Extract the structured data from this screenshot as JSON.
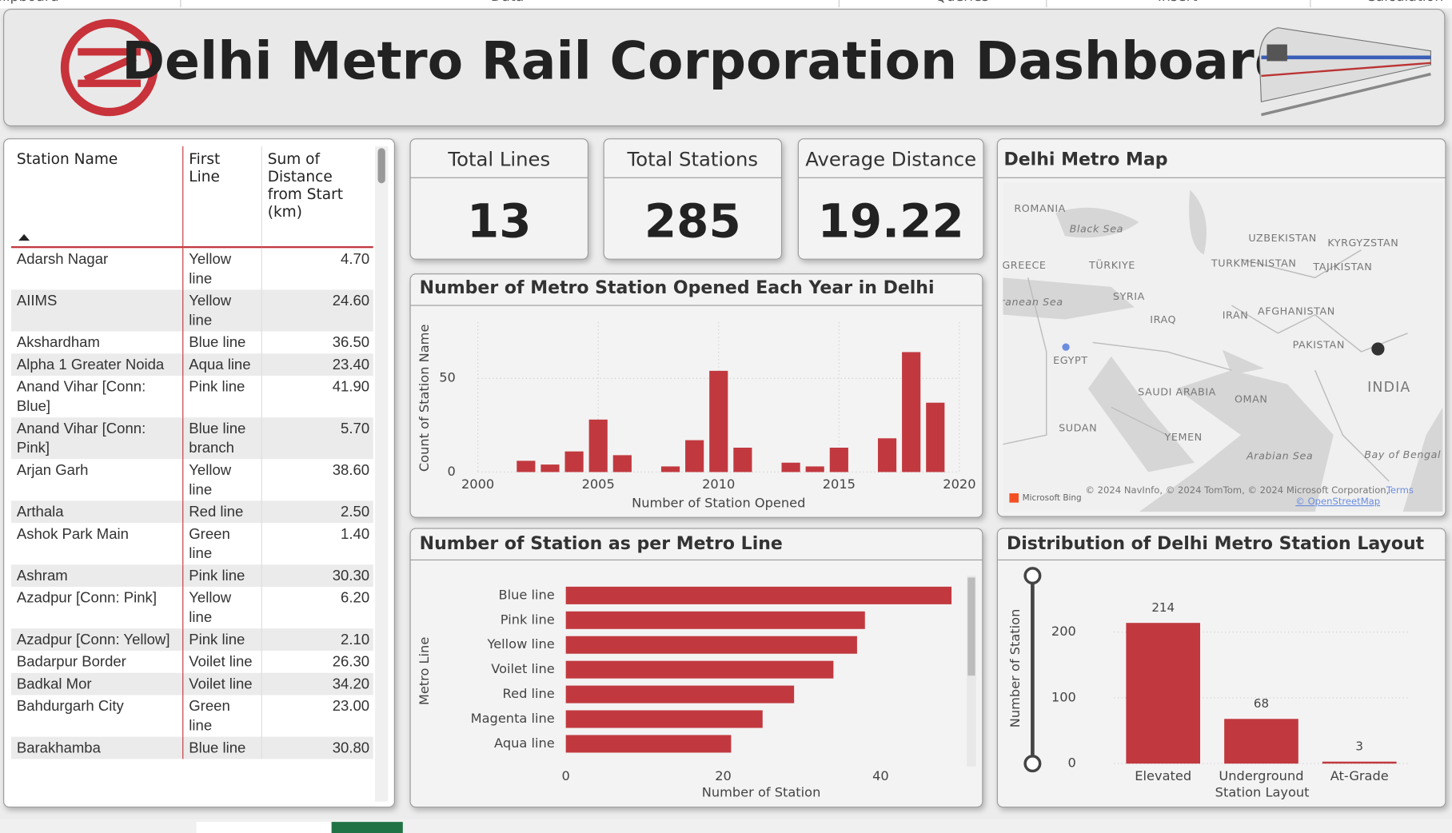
{
  "ribbon": [
    "Clipboard",
    "Data",
    "Queries",
    "Insert",
    "Calculation"
  ],
  "header": {
    "title": "Delhi Metro Rail Corporation Dashboard"
  },
  "table": {
    "columns": [
      "Station Name",
      "First Line",
      "Sum of Distance from Start (km)"
    ],
    "rows": [
      [
        "Adarsh Nagar",
        "Yellow line",
        "4.70"
      ],
      [
        "AIIMS",
        "Yellow line",
        "24.60"
      ],
      [
        "Akshardham",
        "Blue line",
        "36.50"
      ],
      [
        "Alpha 1 Greater Noida",
        "Aqua line",
        "23.40"
      ],
      [
        "Anand Vihar [Conn: Blue]",
        "Pink line",
        "41.90"
      ],
      [
        "Anand Vihar [Conn: Pink]",
        "Blue line branch",
        "5.70"
      ],
      [
        "Arjan Garh",
        "Yellow line",
        "38.60"
      ],
      [
        "Arthala",
        "Red line",
        "2.50"
      ],
      [
        "Ashok Park Main",
        "Green line",
        "1.40"
      ],
      [
        "Ashram",
        "Pink line",
        "30.30"
      ],
      [
        "Azadpur [Conn: Pink]",
        "Yellow line",
        "6.20"
      ],
      [
        "Azadpur [Conn: Yellow]",
        "Pink line",
        "2.10"
      ],
      [
        "Badarpur Border",
        "Voilet line",
        "26.30"
      ],
      [
        "Badkal Mor",
        "Voilet line",
        "34.20"
      ],
      [
        "Bahdurgarh City",
        "Green line",
        "23.00"
      ],
      [
        "Barakhamba",
        "Blue line",
        "30.80"
      ]
    ]
  },
  "cards": [
    {
      "label": "Total Lines",
      "value": 13
    },
    {
      "label": "Total Stations",
      "value": 285
    },
    {
      "label": "Average Distance",
      "value": 19.22
    }
  ],
  "map": {
    "title": "Delhi Metro Map",
    "labels": [
      "ROMANIA",
      "Black Sea",
      "UZBEKISTAN",
      "KYRGYZSTAN",
      "GREECE",
      "TÜRKIYE",
      "TURKMENISTAN",
      "TAJIKISTAN",
      "SYRIA",
      "Mediterranean Sea",
      "IRAQ",
      "IRAN",
      "AFGHANISTAN",
      "PAKISTAN",
      "EGYPT",
      "INDIA",
      "SAUDI ARABIA",
      "OMAN",
      "SUDAN",
      "YEMEN",
      "Arabian Sea",
      "Bay of Bengal"
    ],
    "attribution": "© 2024 NavInfo, © 2024 TomTom, © 2024 Microsoft Corporation,",
    "terms": "Terms",
    "osm": "© OpenStreetMap",
    "brand": "Microsoft Bing"
  },
  "chart_data": [
    {
      "type": "bar",
      "title": "Number of Metro Station Opened Each Year in Delhi",
      "x_label": "Number of Station Opened",
      "y_label": "Count of Station Name",
      "x": [
        2002,
        2003,
        2004,
        2005,
        2006,
        2008,
        2009,
        2010,
        2011,
        2013,
        2014,
        2015,
        2017,
        2018,
        2019
      ],
      "values": [
        6,
        4,
        11,
        28,
        9,
        3,
        17,
        54,
        13,
        5,
        3,
        13,
        18,
        64,
        37
      ],
      "color": "#c1393f",
      "xlim": [
        2000,
        2020
      ],
      "xticks": [
        2000,
        2005,
        2010,
        2015,
        2020
      ],
      "ylim": [
        0,
        80
      ],
      "yticks": [
        0,
        50
      ],
      "grid": true
    },
    {
      "type": "hbar",
      "title": "Number of Station as per Metro Line",
      "x_label": "Number of Station",
      "y_label": "Metro Line",
      "categories": [
        "Blue line",
        "Pink line",
        "Yellow line",
        "Voilet line",
        "Red line",
        "Magenta line",
        "Aqua line"
      ],
      "values": [
        49,
        38,
        37,
        34,
        29,
        25,
        21
      ],
      "color": "#c1393f",
      "xlim": [
        0,
        50
      ],
      "xticks": [
        0,
        20,
        40
      ]
    },
    {
      "type": "bar",
      "title": "Distribution of Delhi Metro Station Layout",
      "x_label": "Station Layout",
      "y_label": "Number of Station",
      "categories": [
        "Elevated",
        "Underground",
        "At-Grade"
      ],
      "values": [
        214,
        68,
        3
      ],
      "color": "#c1393f",
      "ylim": [
        0,
        290
      ],
      "yticks": [
        0,
        100,
        200
      ],
      "grid": true,
      "data_labels": true
    }
  ]
}
